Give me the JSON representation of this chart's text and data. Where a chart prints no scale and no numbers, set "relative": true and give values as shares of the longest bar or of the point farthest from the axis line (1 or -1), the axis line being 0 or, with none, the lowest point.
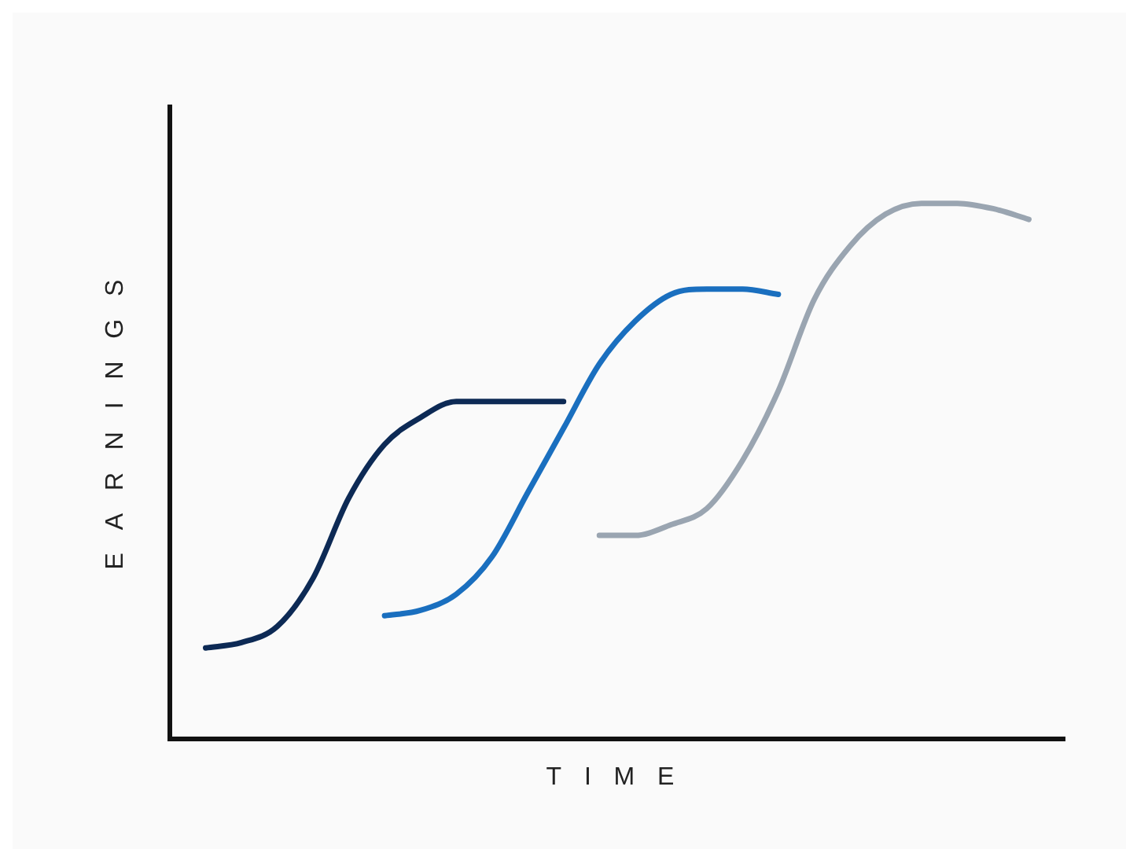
{
  "chart_data": {
    "type": "line",
    "xlabel": "TIME",
    "ylabel": "EARNINGS",
    "relative": true,
    "grid": false,
    "legend": false,
    "marker": "none",
    "categories": [
      null,
      null,
      null,
      null,
      null,
      null,
      null,
      null,
      null,
      null,
      null,
      null,
      null,
      null,
      null,
      null,
      null,
      null,
      null,
      null,
      null,
      null,
      null,
      null,
      null,
      null
    ],
    "series": [
      {
        "color": "#0d2a55",
        "values": [
          null,
          0.17,
          0.18,
          0.21,
          0.3,
          0.45,
          0.55,
          0.6,
          0.63,
          0.63,
          0.63,
          0.63,
          null,
          null,
          null,
          null,
          null,
          null,
          null,
          null,
          null,
          null,
          null,
          null,
          null,
          null
        ]
      },
      {
        "color": "#1a6fbf",
        "values": [
          null,
          null,
          null,
          null,
          null,
          null,
          0.23,
          0.24,
          0.27,
          0.34,
          0.46,
          0.58,
          0.7,
          0.78,
          0.83,
          0.84,
          0.84,
          0.83,
          null,
          null,
          null,
          null,
          null,
          null,
          null,
          null
        ]
      },
      {
        "color": "#9aa5b1",
        "values": [
          null,
          null,
          null,
          null,
          null,
          null,
          null,
          null,
          null,
          null,
          null,
          null,
          0.38,
          0.38,
          0.4,
          0.43,
          0.52,
          0.65,
          0.82,
          0.92,
          0.98,
          1,
          1,
          0.99,
          0.97,
          null
        ]
      }
    ]
  }
}
